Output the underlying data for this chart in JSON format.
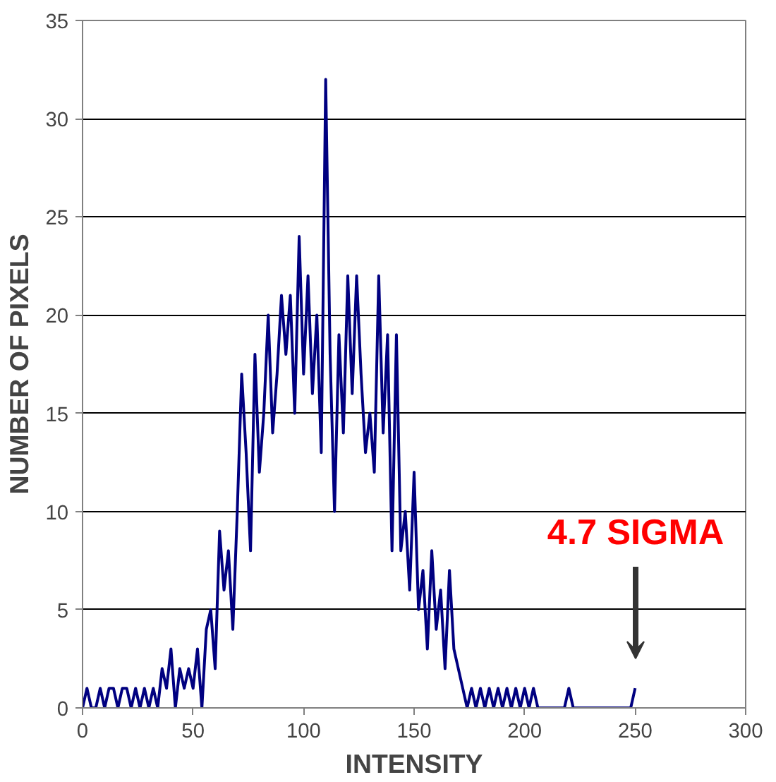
{
  "chart_data": {
    "type": "line",
    "xlabel": "INTENSITY",
    "ylabel": "NUMBER OF PIXELS",
    "xlim": [
      0,
      300
    ],
    "xticks": [
      0,
      50,
      100,
      150,
      200,
      250,
      300
    ],
    "ylim": [
      0,
      35
    ],
    "yticks": [
      0,
      5,
      10,
      15,
      20,
      25,
      30,
      35
    ],
    "grid": "y",
    "marker": "none",
    "line_style": "solid",
    "annotations": [
      "4.7 SIGMA"
    ],
    "series": [
      {
        "color": "#000080",
        "x": [
          0,
          2,
          4,
          6,
          8,
          10,
          12,
          14,
          16,
          18,
          20,
          22,
          24,
          26,
          28,
          30,
          32,
          34,
          36,
          38,
          40,
          42,
          44,
          46,
          48,
          50,
          52,
          54,
          56,
          58,
          60,
          62,
          64,
          66,
          68,
          70,
          72,
          74,
          76,
          78,
          80,
          82,
          84,
          86,
          88,
          90,
          92,
          94,
          96,
          98,
          100,
          102,
          104,
          106,
          108,
          110,
          112,
          114,
          116,
          118,
          120,
          122,
          124,
          126,
          128,
          130,
          132,
          134,
          136,
          138,
          140,
          142,
          144,
          146,
          148,
          150,
          152,
          154,
          156,
          158,
          160,
          162,
          164,
          166,
          168,
          170,
          172,
          174,
          176,
          178,
          180,
          182,
          184,
          186,
          188,
          190,
          192,
          194,
          196,
          198,
          200,
          202,
          204,
          206,
          218,
          220,
          222,
          248,
          250
        ],
        "values": [
          0,
          1,
          0,
          0,
          1,
          0,
          1,
          1,
          0,
          1,
          1,
          0,
          1,
          0,
          1,
          0,
          1,
          0,
          2,
          1,
          3,
          0,
          2,
          1,
          2,
          1,
          3,
          0,
          4,
          5,
          2,
          9,
          6,
          8,
          4,
          10,
          17,
          13,
          8,
          18,
          12,
          15,
          20,
          14,
          17,
          21,
          18,
          21,
          15,
          24,
          17,
          22,
          16,
          20,
          13,
          32,
          18,
          10,
          19,
          14,
          22,
          16,
          22,
          17,
          13,
          15,
          12,
          22,
          14,
          19,
          8,
          19,
          8,
          10,
          6,
          12,
          5,
          7,
          3,
          8,
          4,
          6,
          2,
          7,
          3,
          2,
          1,
          0,
          1,
          0,
          1,
          0,
          1,
          0,
          1,
          0,
          1,
          0,
          1,
          0,
          1,
          0,
          1,
          0,
          0,
          1,
          0,
          0,
          1
        ]
      }
    ]
  }
}
